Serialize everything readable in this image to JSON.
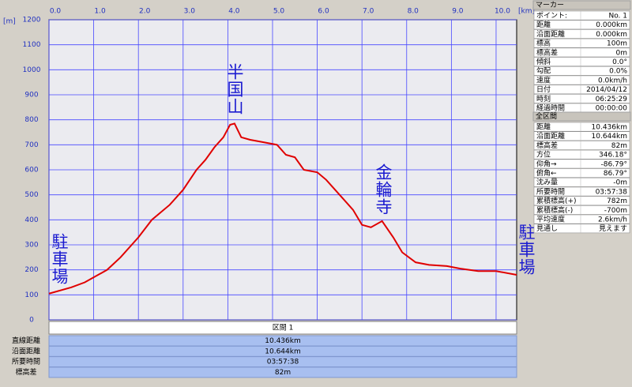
{
  "chart_data": {
    "type": "line",
    "x_label": "[km]",
    "y_label": "[m]",
    "x": [
      0,
      0.5,
      0.8,
      1.0,
      1.3,
      1.6,
      2.0,
      2.3,
      2.7,
      3.0,
      3.3,
      3.5,
      3.7,
      3.9,
      4.05,
      4.15,
      4.3,
      4.5,
      4.8,
      5.1,
      5.3,
      5.5,
      5.7,
      6.0,
      6.2,
      6.5,
      6.8,
      7.0,
      7.2,
      7.45,
      7.7,
      7.9,
      8.2,
      8.5,
      8.9,
      9.2,
      9.6,
      10.0,
      10.46
    ],
    "values": [
      105,
      130,
      150,
      170,
      200,
      250,
      330,
      400,
      460,
      520,
      600,
      640,
      690,
      730,
      780,
      785,
      730,
      720,
      710,
      700,
      660,
      650,
      600,
      590,
      560,
      500,
      440,
      380,
      370,
      395,
      330,
      270,
      230,
      220,
      215,
      205,
      195,
      195,
      180
    ],
    "color": "#e00000",
    "xlim": [
      0,
      10.46
    ],
    "ylim": [
      0,
      1200
    ],
    "xticks": [
      {
        "value": 0,
        "label": "0.0"
      },
      {
        "value": 1,
        "label": "1.0"
      },
      {
        "value": 2,
        "label": "2.0"
      },
      {
        "value": 3,
        "label": "3.0"
      },
      {
        "value": 4,
        "label": "4.0"
      },
      {
        "value": 5,
        "label": "5.0"
      },
      {
        "value": 6,
        "label": "6.0"
      },
      {
        "value": 7,
        "label": "7.0"
      },
      {
        "value": 8,
        "label": "8.0"
      },
      {
        "value": 9,
        "label": "9.0"
      },
      {
        "value": 10,
        "label": "10.0"
      }
    ],
    "yticks": [
      0,
      100,
      200,
      300,
      400,
      500,
      600,
      700,
      800,
      900,
      1000,
      1100,
      1200
    ],
    "grid": true,
    "annotations": [
      {
        "text": "駐車場"
      },
      {
        "text": "半国山"
      },
      {
        "text": "金輪寺"
      },
      {
        "text": "駐車場"
      }
    ]
  },
  "section_table": {
    "title": "区間 1",
    "rows": [
      [
        "直線距離",
        "10.436km"
      ],
      [
        "沿面距離",
        "10.644km"
      ],
      [
        "所要時間",
        "03:57:38"
      ],
      [
        "標高差",
        "82m"
      ]
    ]
  },
  "marker_panel": {
    "title": "マーカー",
    "rows": [
      [
        "ポイント:",
        "No. 1"
      ],
      [
        "距離",
        "0.000km"
      ],
      [
        "沿面距離",
        "0.000km"
      ],
      [
        "標高",
        "100m"
      ],
      [
        "標高差",
        "0m"
      ],
      [
        "傾斜",
        "0.0°"
      ],
      [
        "勾配",
        "0.0%"
      ],
      [
        "速度",
        "0.0km/h"
      ],
      [
        "日付",
        "2014/04/12"
      ],
      [
        "時刻",
        "06:25:29"
      ],
      [
        "経過時間",
        "00:00:00"
      ]
    ]
  },
  "total_panel": {
    "title": "全区間",
    "rows": [
      [
        "距離",
        "10.436km"
      ],
      [
        "沿面距離",
        "10.644km"
      ],
      [
        "標高差",
        "82m"
      ],
      [
        "方位",
        "346.18°"
      ],
      [
        "仰角→",
        "-86.79°"
      ],
      [
        "俯角←",
        "86.79°"
      ],
      [
        "沈み量",
        "-0m"
      ],
      [
        "所要時間",
        "03:57:38"
      ],
      [
        "累積標高(+)",
        "782m"
      ],
      [
        "累積標高(-)",
        "-700m"
      ],
      [
        "平均速度",
        "2.6km/h"
      ],
      [
        "見通し",
        "見えます"
      ]
    ]
  }
}
